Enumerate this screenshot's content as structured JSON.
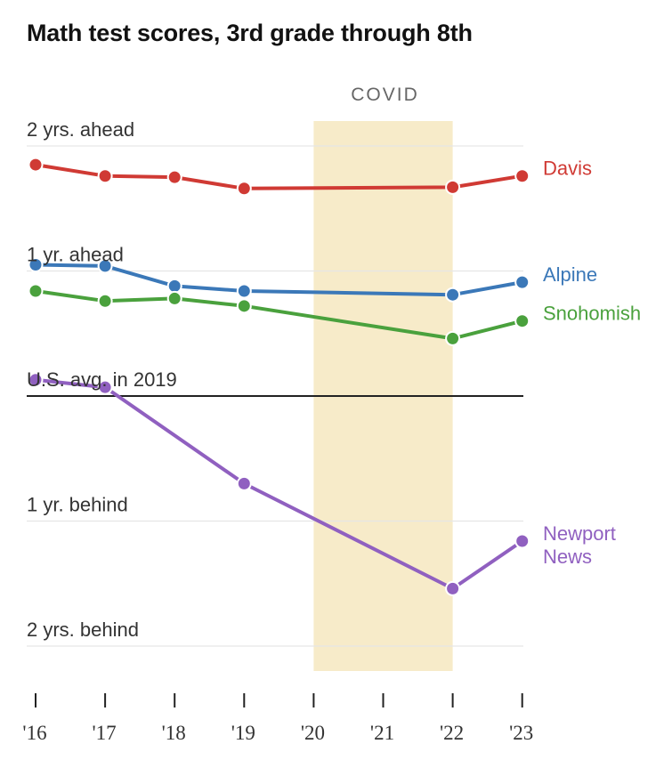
{
  "colors": {
    "davis": "#d03a34",
    "alpine": "#3b78b8",
    "snohomish": "#4aa13d",
    "newport_news": "#9060c0",
    "covid_band": "#f7ebc9"
  },
  "chart_data": {
    "type": "line",
    "title": "Math test scores, 3rd grade through 8th",
    "x": [
      "'16",
      "'17",
      "'18",
      "'19",
      "'20",
      "'21",
      "'22",
      "'23"
    ],
    "y_tick_labels": {
      "2": "2 yrs. ahead",
      "1": "1 yr. ahead",
      "0": "U.S. avg. in 2019",
      "-1": "1 yr. behind",
      "-2": "2 yrs. behind"
    },
    "ylim": [
      -2.2,
      2.2
    ],
    "annotation": {
      "label": "COVID",
      "x_start": "'20",
      "x_end": "'22"
    },
    "series": [
      {
        "name": "Davis",
        "color": "#d03a34",
        "values": [
          1.85,
          1.76,
          1.75,
          1.66,
          null,
          null,
          1.67,
          1.76
        ]
      },
      {
        "name": "Alpine",
        "color": "#3b78b8",
        "values": [
          1.05,
          1.04,
          0.88,
          0.84,
          null,
          null,
          0.81,
          0.91
        ]
      },
      {
        "name": "Snohomish",
        "color": "#4aa13d",
        "values": [
          0.84,
          0.76,
          0.78,
          0.72,
          null,
          null,
          0.46,
          0.6
        ]
      },
      {
        "name": "Newport News",
        "label_lines": [
          "Newport",
          "News"
        ],
        "color": "#9060c0",
        "values": [
          0.13,
          0.07,
          null,
          -0.7,
          null,
          null,
          -1.54,
          -1.16
        ]
      }
    ]
  }
}
